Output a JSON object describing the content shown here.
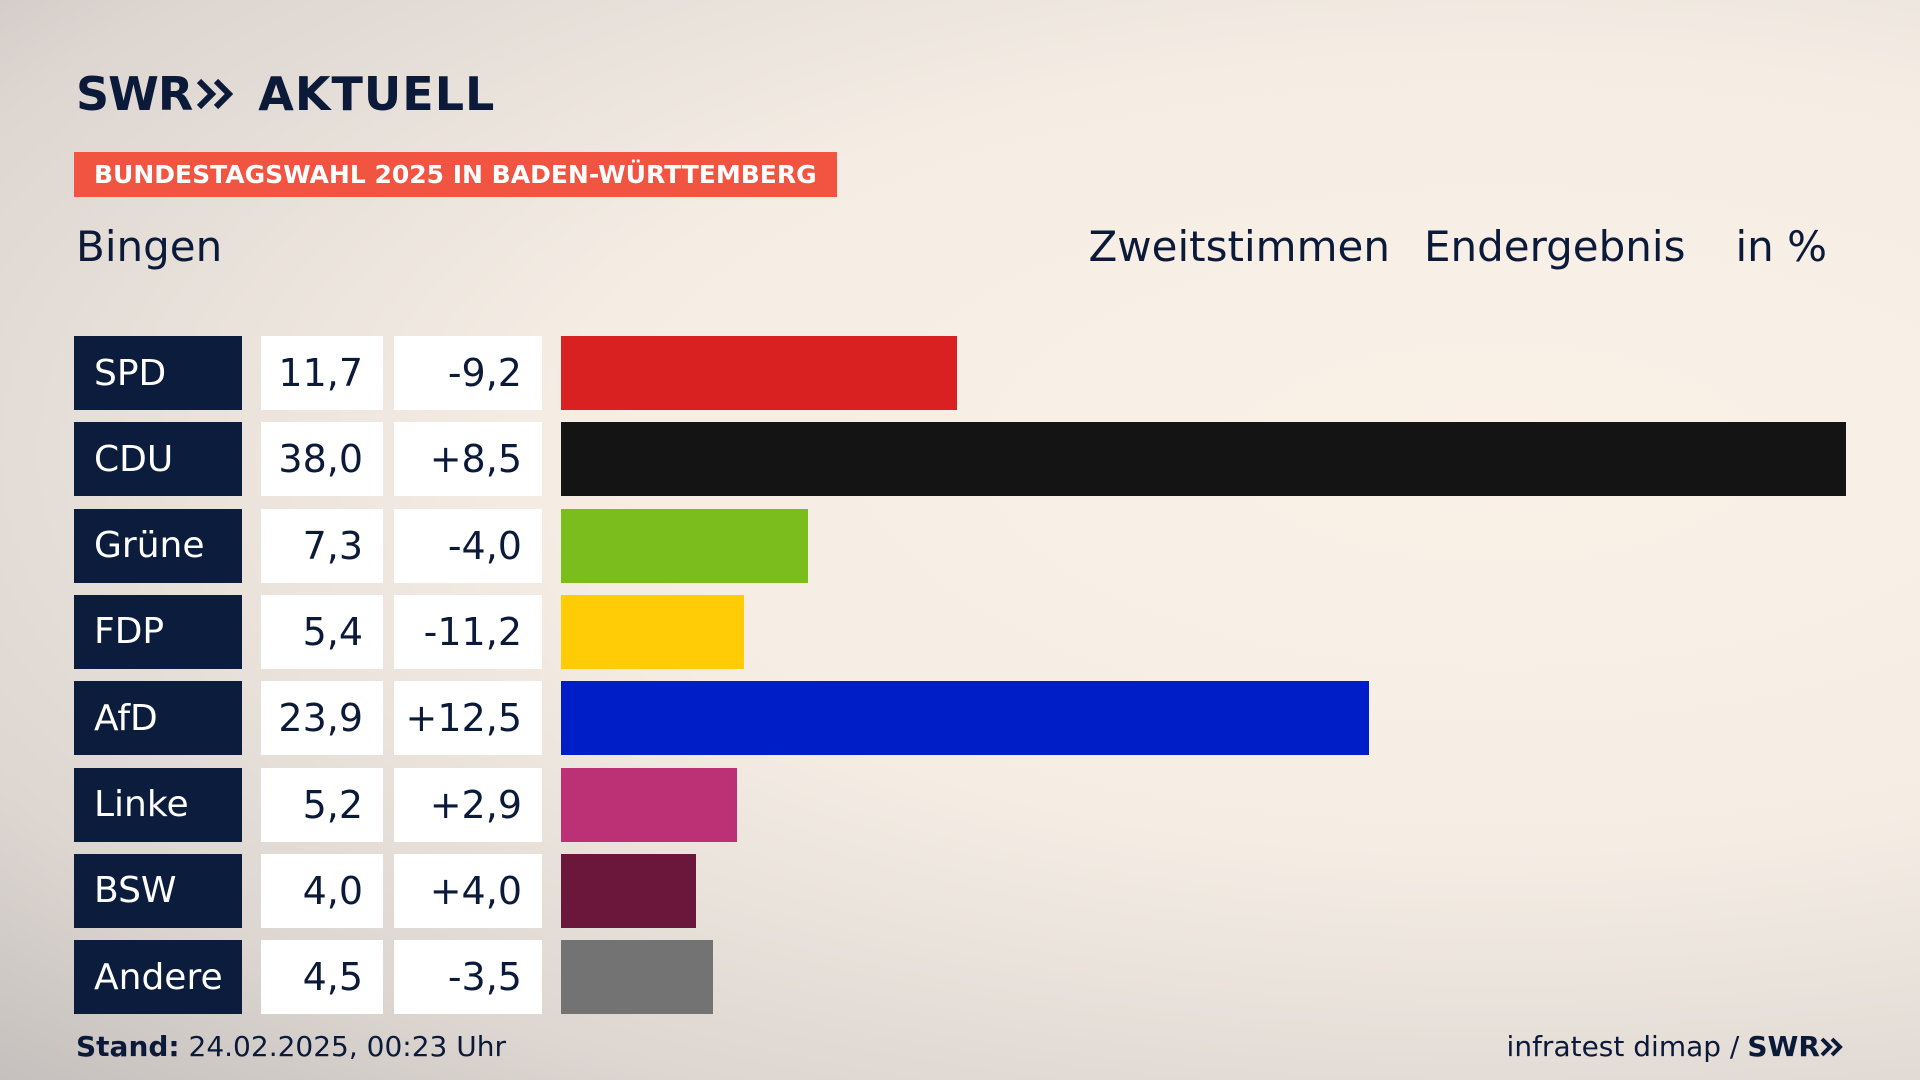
{
  "brand": {
    "logo_swr": "SWR",
    "logo_aktuell": "AKTUELL",
    "footer_logo": "SWR"
  },
  "banner": "BUNDESTAGSWAHL 2025 IN BADEN-WÜRTTEMBERG",
  "place": "Bingen",
  "heading": {
    "vote_type": "Zweitstimmen",
    "status": "Endergebnis",
    "unit": "in %"
  },
  "chart_data": {
    "type": "bar",
    "orientation": "horizontal",
    "categories": [
      "SPD",
      "CDU",
      "Grüne",
      "FDP",
      "AfD",
      "Linke",
      "BSW",
      "Andere"
    ],
    "values": [
      11.7,
      38.0,
      7.3,
      5.4,
      23.9,
      5.2,
      4.0,
      4.5
    ],
    "value_labels": [
      "11,7",
      "38,0",
      "7,3",
      "5,4",
      "23,9",
      "5,2",
      "4,0",
      "4,5"
    ],
    "changes": [
      -9.2,
      8.5,
      -4.0,
      -11.2,
      12.5,
      2.9,
      4.0,
      -3.5
    ],
    "change_labels": [
      "-9,2",
      "+8,5",
      "-4,0",
      "-11,2",
      "+12,5",
      "+2,9",
      "+4,0",
      "-3,5"
    ],
    "colors": [
      "#d92121",
      "#141414",
      "#7abd1d",
      "#ffcc06",
      "#001ec8",
      "#bc3175",
      "#6b173c",
      "#737373"
    ],
    "xlim": [
      0,
      38.0
    ],
    "grid": false,
    "legend": "none"
  },
  "footer": {
    "stand_label": "Stand:",
    "stand_value": "24.02.2025, 00:23 Uhr",
    "source": "infratest dimap /"
  }
}
